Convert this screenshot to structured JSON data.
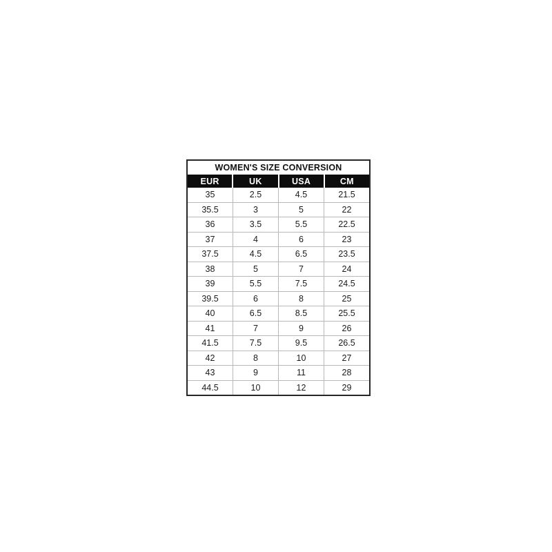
{
  "chart_data": {
    "type": "table",
    "title": "WOMEN'S SIZE CONVERSION",
    "columns": [
      "EUR",
      "UK",
      "USA",
      "CM"
    ],
    "rows": [
      [
        "35",
        "2.5",
        "4.5",
        "21.5"
      ],
      [
        "35.5",
        "3",
        "5",
        "22"
      ],
      [
        "36",
        "3.5",
        "5.5",
        "22.5"
      ],
      [
        "37",
        "4",
        "6",
        "23"
      ],
      [
        "37.5",
        "4.5",
        "6.5",
        "23.5"
      ],
      [
        "38",
        "5",
        "7",
        "24"
      ],
      [
        "39",
        "5.5",
        "7.5",
        "24.5"
      ],
      [
        "39.5",
        "6",
        "8",
        "25"
      ],
      [
        "40",
        "6.5",
        "8.5",
        "25.5"
      ],
      [
        "41",
        "7",
        "9",
        "26"
      ],
      [
        "41.5",
        "7.5",
        "9.5",
        "26.5"
      ],
      [
        "42",
        "8",
        "10",
        "27"
      ],
      [
        "43",
        "9",
        "11",
        "28"
      ],
      [
        "44.5",
        "10",
        "12",
        "29"
      ]
    ],
    "layout": {
      "legend": "none",
      "grid": "on"
    },
    "colors": {
      "header_bg": "#0d0d0d",
      "header_text": "#ffffff",
      "body_text": "#1b1b1b",
      "grid_line": "#b8b8b8",
      "outer_border": "#262626",
      "page_background": "#ffffff"
    }
  }
}
